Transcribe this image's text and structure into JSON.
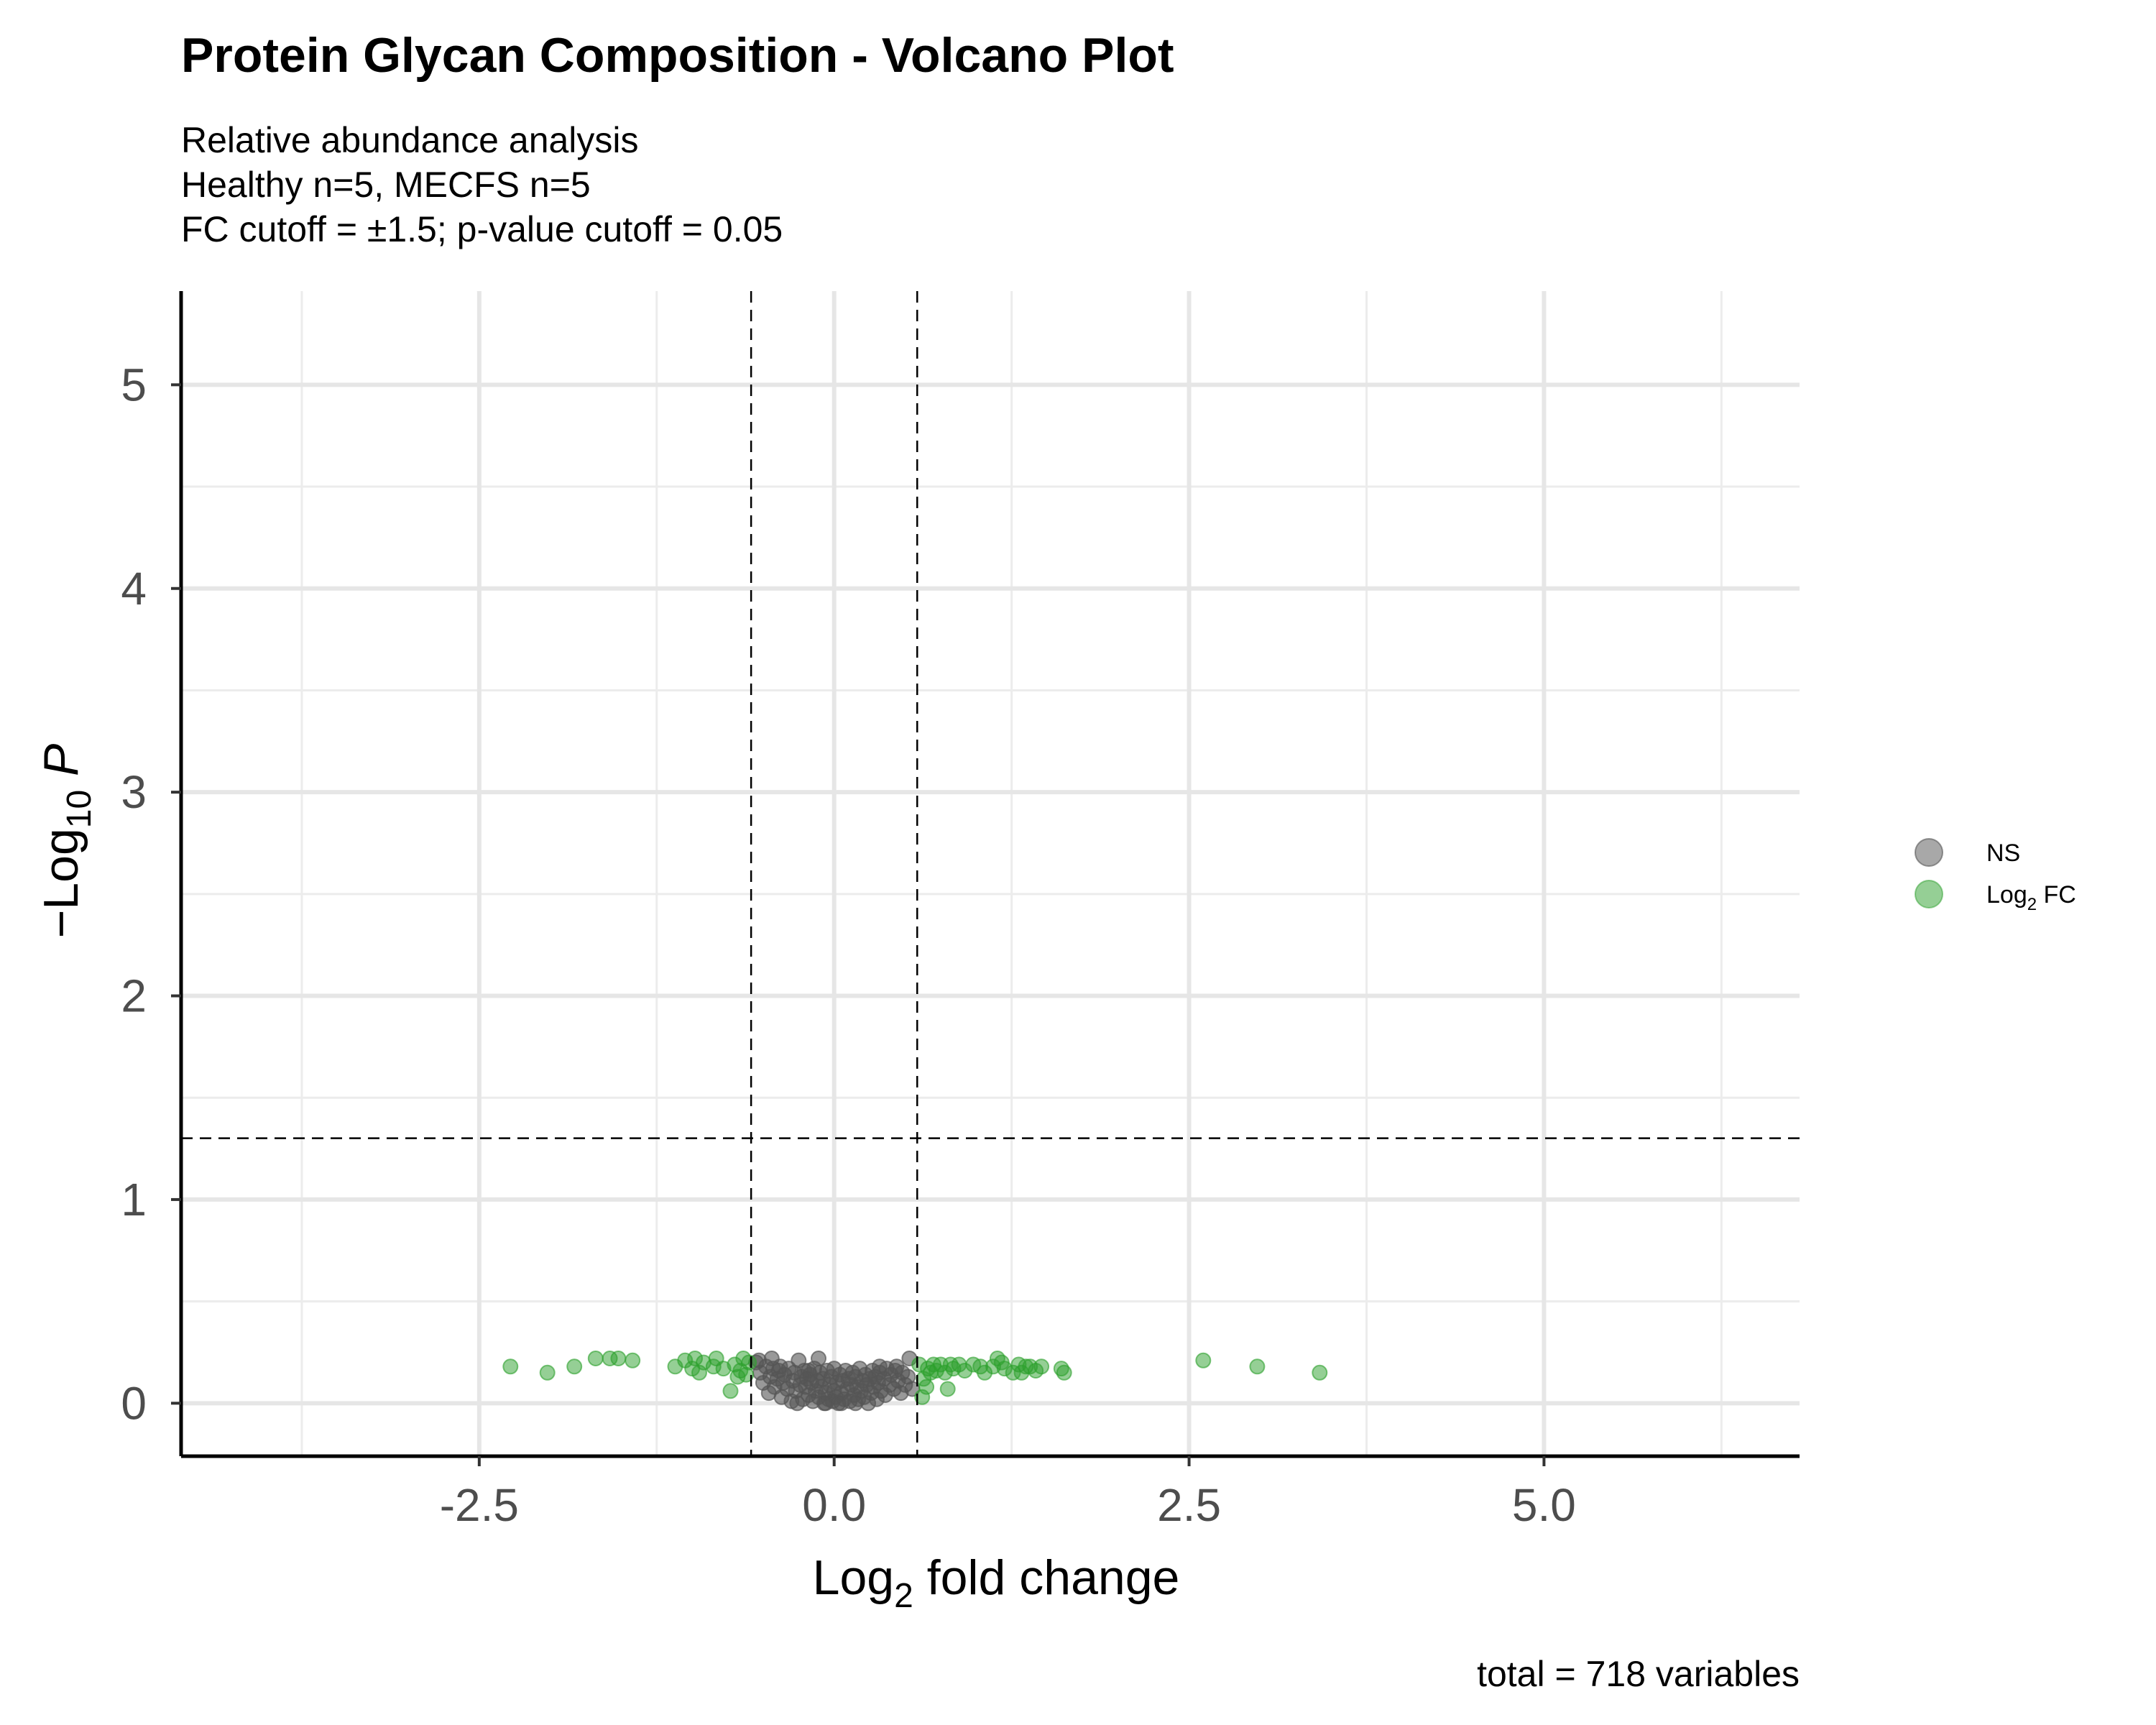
{
  "chart_data": {
    "type": "scatter",
    "title": "Protein Glycan Composition - Volcano Plot",
    "subtitle_lines": [
      "Relative abundance analysis",
      "Healthy n=5, MECFS n=5",
      "FC cutoff = ±1.5; p-value cutoff = 0.05"
    ],
    "xlabel": {
      "prefix": "Log",
      "sub": "2",
      "suffix": " fold change"
    },
    "ylabel": {
      "prefix": "−Log",
      "sub": "10",
      "suffix": " ",
      "italic": "P"
    },
    "xlim": [
      -4.6,
      6.8
    ],
    "ylim": [
      -0.26,
      5.46
    ],
    "x_ticks": [
      -2.5,
      0.0,
      2.5,
      5.0
    ],
    "x_tick_labels": [
      "-2.5",
      "0.0",
      "2.5",
      "5.0"
    ],
    "y_ticks": [
      0,
      1,
      2,
      3,
      4,
      5
    ],
    "y_tick_labels": [
      "0",
      "1",
      "2",
      "3",
      "4",
      "5"
    ],
    "grid": true,
    "fc_cutoff_lines": [
      -0.585,
      0.585
    ],
    "p_cutoff_line": 1.301,
    "legend_position": "right",
    "legend": [
      {
        "key": "NS",
        "label": "NS",
        "color": "#6e6e6e"
      },
      {
        "key": "FC",
        "label_prefix": "Log",
        "label_sub": "2",
        "label_suffix": " FC",
        "color": "#2ca02c"
      }
    ],
    "caption": "total = 718 variables",
    "series": [
      {
        "name": "NS",
        "color": "#555555",
        "points": [
          [
            -0.55,
            0.2
          ],
          [
            -0.52,
            0.15
          ],
          [
            -0.5,
            0.1
          ],
          [
            -0.48,
            0.18
          ],
          [
            -0.46,
            0.05
          ],
          [
            -0.45,
            0.13
          ],
          [
            -0.43,
            0.17
          ],
          [
            -0.42,
            0.08
          ],
          [
            -0.4,
            0.12
          ],
          [
            -0.39,
            0.16
          ],
          [
            -0.37,
            0.03
          ],
          [
            -0.36,
            0.1
          ],
          [
            -0.35,
            0.14
          ],
          [
            -0.33,
            0.07
          ],
          [
            -0.32,
            0.17
          ],
          [
            -0.3,
            0.01
          ],
          [
            -0.29,
            0.11
          ],
          [
            -0.28,
            0.15
          ],
          [
            -0.27,
            0.06
          ],
          [
            -0.25,
            0.21
          ],
          [
            -0.24,
            0.09
          ],
          [
            -0.23,
            0.13
          ],
          [
            -0.22,
            0.02
          ],
          [
            -0.21,
            0.16
          ],
          [
            -0.2,
            0.08
          ],
          [
            -0.19,
            0.12
          ],
          [
            -0.18,
            0.04
          ],
          [
            -0.17,
            0.14
          ],
          [
            -0.16,
            0.1
          ],
          [
            -0.15,
            0.01
          ],
          [
            -0.14,
            0.17
          ],
          [
            -0.13,
            0.06
          ],
          [
            -0.12,
            0.11
          ],
          [
            -0.11,
            0.03
          ],
          [
            -0.1,
            0.15
          ],
          [
            -0.09,
            0.08
          ],
          [
            -0.08,
            0.12
          ],
          [
            -0.07,
            0.0
          ],
          [
            -0.06,
            0.05
          ],
          [
            -0.05,
            0.16
          ],
          [
            -0.04,
            0.02
          ],
          [
            -0.03,
            0.09
          ],
          [
            -0.02,
            0.13
          ],
          [
            -0.01,
            0.01
          ],
          [
            0.0,
            0.06
          ],
          [
            0.0,
            0.17
          ],
          [
            0.01,
            0.03
          ],
          [
            0.02,
            0.1
          ],
          [
            0.03,
            0.0
          ],
          [
            0.04,
            0.14
          ],
          [
            0.05,
            0.05
          ],
          [
            0.06,
            0.11
          ],
          [
            0.07,
            0.02
          ],
          [
            0.08,
            0.16
          ],
          [
            0.09,
            0.07
          ],
          [
            0.1,
            0.12
          ],
          [
            0.11,
            0.01
          ],
          [
            0.12,
            0.09
          ],
          [
            0.13,
            0.15
          ],
          [
            0.14,
            0.04
          ],
          [
            0.15,
            0.13
          ],
          [
            0.16,
            0.08
          ],
          [
            0.17,
            0.02
          ],
          [
            0.18,
            0.17
          ],
          [
            0.19,
            0.06
          ],
          [
            0.2,
            0.11
          ],
          [
            0.21,
            0.03
          ],
          [
            0.22,
            0.14
          ],
          [
            0.23,
            0.09
          ],
          [
            0.24,
            0.0
          ],
          [
            0.25,
            0.12
          ],
          [
            0.26,
            0.05
          ],
          [
            0.27,
            0.16
          ],
          [
            0.28,
            0.08
          ],
          [
            0.29,
            0.13
          ],
          [
            0.3,
            0.02
          ],
          [
            0.31,
            0.1
          ],
          [
            0.32,
            0.15
          ],
          [
            0.33,
            0.06
          ],
          [
            0.35,
            0.12
          ],
          [
            0.36,
            0.04
          ],
          [
            0.37,
            0.17
          ],
          [
            0.39,
            0.09
          ],
          [
            0.4,
            0.14
          ],
          [
            0.42,
            0.07
          ],
          [
            0.43,
            0.16
          ],
          [
            0.45,
            0.11
          ],
          [
            0.47,
            0.05
          ],
          [
            0.48,
            0.15
          ],
          [
            0.5,
            0.09
          ],
          [
            0.52,
            0.13
          ],
          [
            0.53,
            0.22
          ],
          [
            0.55,
            0.07
          ],
          [
            -0.53,
            0.21
          ],
          [
            -0.44,
            0.22
          ],
          [
            -0.11,
            0.22
          ],
          [
            -0.26,
            0.0
          ],
          [
            -0.06,
            0.0
          ],
          [
            0.05,
            0.0
          ],
          [
            0.15,
            0.0
          ],
          [
            -0.18,
            0.16
          ],
          [
            0.32,
            0.18
          ],
          [
            -0.38,
            0.18
          ],
          [
            0.44,
            0.18
          ]
        ]
      },
      {
        "name": "Log2 FC",
        "color": "#2ca02c",
        "points": [
          [
            -2.28,
            0.18
          ],
          [
            -2.02,
            0.15
          ],
          [
            -1.83,
            0.18
          ],
          [
            -1.68,
            0.22
          ],
          [
            -1.58,
            0.22
          ],
          [
            -1.52,
            0.22
          ],
          [
            -1.42,
            0.21
          ],
          [
            -1.12,
            0.18
          ],
          [
            -1.05,
            0.21
          ],
          [
            -1.0,
            0.17
          ],
          [
            -0.98,
            0.22
          ],
          [
            -0.95,
            0.15
          ],
          [
            -0.92,
            0.2
          ],
          [
            -0.85,
            0.18
          ],
          [
            -0.83,
            0.22
          ],
          [
            -0.78,
            0.17
          ],
          [
            -0.73,
            0.06
          ],
          [
            -0.7,
            0.19
          ],
          [
            -0.68,
            0.13
          ],
          [
            -0.66,
            0.16
          ],
          [
            -0.64,
            0.22
          ],
          [
            -0.62,
            0.14
          ],
          [
            -0.6,
            0.2
          ],
          [
            0.6,
            0.19
          ],
          [
            0.62,
            0.03
          ],
          [
            0.63,
            0.12
          ],
          [
            0.65,
            0.08
          ],
          [
            0.66,
            0.17
          ],
          [
            0.68,
            0.15
          ],
          [
            0.7,
            0.19
          ],
          [
            0.72,
            0.16
          ],
          [
            0.75,
            0.19
          ],
          [
            0.78,
            0.15
          ],
          [
            0.8,
            0.07
          ],
          [
            0.82,
            0.19
          ],
          [
            0.84,
            0.17
          ],
          [
            0.88,
            0.19
          ],
          [
            0.92,
            0.16
          ],
          [
            0.98,
            0.19
          ],
          [
            1.03,
            0.18
          ],
          [
            1.06,
            0.15
          ],
          [
            1.12,
            0.18
          ],
          [
            1.15,
            0.22
          ],
          [
            1.18,
            0.2
          ],
          [
            1.2,
            0.17
          ],
          [
            1.26,
            0.15
          ],
          [
            1.3,
            0.19
          ],
          [
            1.32,
            0.15
          ],
          [
            1.35,
            0.18
          ],
          [
            1.38,
            0.18
          ],
          [
            1.42,
            0.16
          ],
          [
            1.46,
            0.18
          ],
          [
            1.6,
            0.17
          ],
          [
            1.62,
            0.15
          ],
          [
            2.6,
            0.21
          ],
          [
            2.98,
            0.18
          ],
          [
            3.42,
            0.15
          ]
        ]
      }
    ]
  }
}
